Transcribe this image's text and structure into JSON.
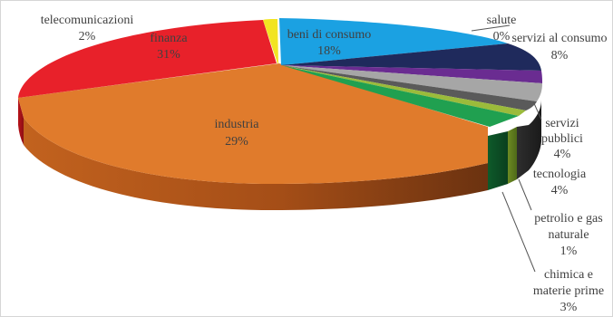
{
  "chart_data": {
    "type": "pie",
    "style": "3d-exploded",
    "legend": "none",
    "slices": [
      {
        "key": "beni",
        "name": "beni di consumo",
        "value": 18,
        "label": "18%",
        "color": "#1BA1E2"
      },
      {
        "key": "salute",
        "name": "salute",
        "value": 0,
        "label": "0%",
        "color": "#7030A0"
      },
      {
        "key": "servizi_consumo",
        "name": "servizi al consumo",
        "value": 8,
        "label": "8%",
        "color": "#1F2A5C"
      },
      {
        "key": "viola",
        "name": "",
        "value": 2,
        "label": "",
        "color": "#6A2C91"
      },
      {
        "key": "servizi_pubblici",
        "name": "servizi pubblici",
        "value": 4,
        "label": "4%",
        "color": "#A6A6A6"
      },
      {
        "key": "tecnologia",
        "name": "tecnologia",
        "value": 4,
        "label": "4%",
        "color": "#404040"
      },
      {
        "key": "petrolio",
        "name": "petrolio e gas naturale",
        "value": 1,
        "label": "1%",
        "color": "#9BBB3B"
      },
      {
        "key": "chimica",
        "name": "chimica e materie prime",
        "value": 3,
        "label": "3%",
        "color": "#20A050"
      },
      {
        "key": "industria",
        "name": "industria",
        "value": 29,
        "label": "29%",
        "color": "#E07B2C"
      },
      {
        "key": "finanza",
        "name": "finanza",
        "value": 31,
        "label": "31%",
        "color": "#E8212A"
      },
      {
        "key": "telecom",
        "name": "telecomunicazioni",
        "value": 2,
        "label": "2%",
        "color": "#F2E422"
      }
    ],
    "label_texts": {
      "beni": [
        "beni di consumo",
        "18%"
      ],
      "finanza": [
        "finanza",
        "31%"
      ],
      "telecom": [
        "telecomunicazioni",
        "2%"
      ],
      "industria": [
        "industria",
        "29%"
      ],
      "salute": [
        "salute",
        "0%"
      ],
      "servizi_consumo": [
        "servizi al consumo",
        "8%"
      ],
      "servizi_pubblici": [
        "servizi",
        "pubblici",
        "4%"
      ],
      "tecnologia": [
        "tecnologia",
        "4%"
      ],
      "petrolio": [
        "petrolio e gas",
        "naturale",
        "1%"
      ],
      "chimica": [
        "chimica e",
        "materie prime",
        "3%"
      ]
    }
  }
}
